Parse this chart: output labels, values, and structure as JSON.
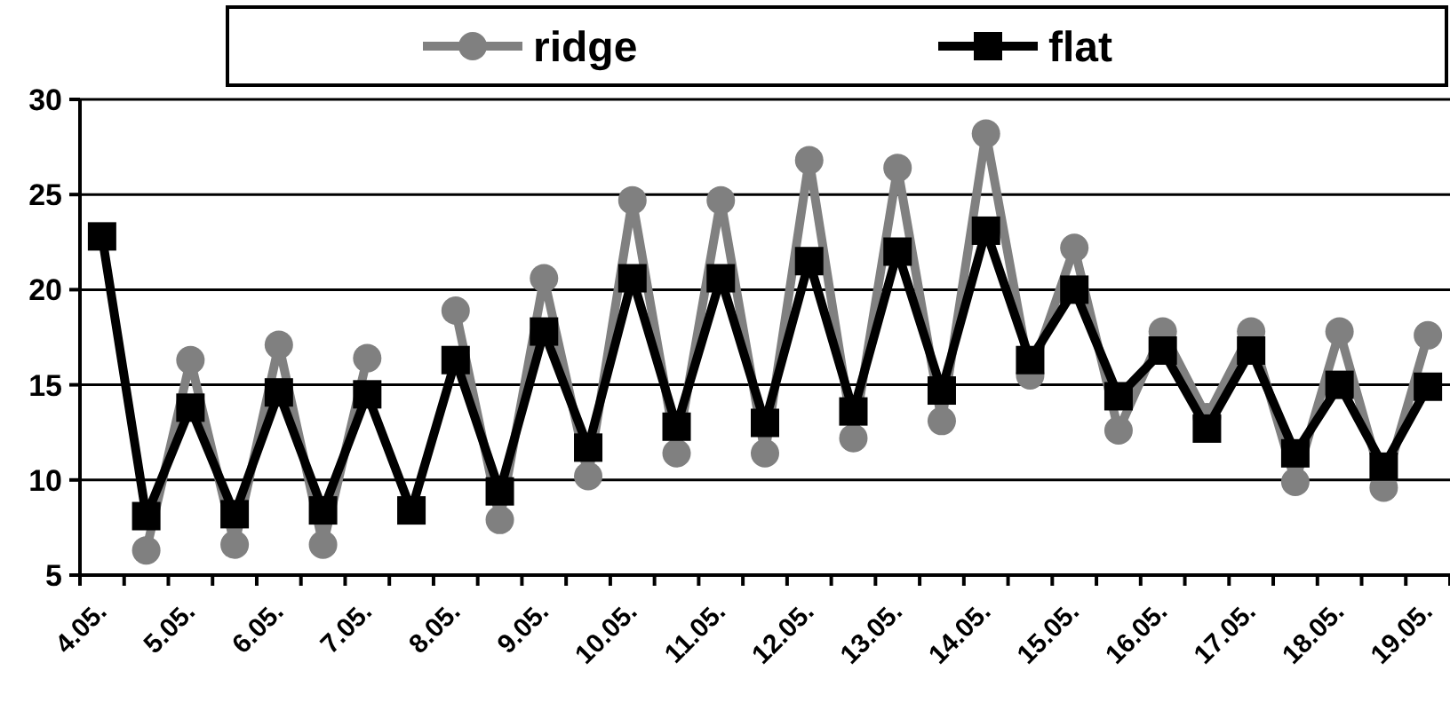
{
  "chart_data": {
    "type": "line",
    "categories": [
      "4.05.",
      null,
      "5.05.",
      null,
      "6.05.",
      null,
      "7.05.",
      null,
      "8.05.",
      null,
      "9.05.",
      null,
      "10.05.",
      null,
      "11.05.",
      null,
      "12.05.",
      null,
      "13.05.",
      null,
      "14.05.",
      null,
      "15.05.",
      null,
      "16.05.",
      null,
      "17.05.",
      null,
      "18.05.",
      null,
      "19.05."
    ],
    "series": [
      {
        "name": "ridge",
        "color": "#808080",
        "marker": "circle",
        "values": [
          null,
          6.3,
          16.3,
          6.6,
          17.1,
          6.6,
          16.4,
          null,
          18.9,
          7.9,
          20.6,
          10.2,
          24.7,
          11.4,
          24.7,
          11.4,
          26.8,
          12.2,
          26.4,
          13.1,
          28.2,
          15.5,
          22.2,
          12.6,
          17.8,
          13.3,
          17.8,
          9.9,
          17.8,
          9.6,
          17.6
        ]
      },
      {
        "name": "flat",
        "color": "#000000",
        "marker": "square",
        "values": [
          22.8,
          8.1,
          13.8,
          8.2,
          14.6,
          8.4,
          14.5,
          8.4,
          16.3,
          9.4,
          17.8,
          11.7,
          20.6,
          12.8,
          20.6,
          13.0,
          21.5,
          13.6,
          22.0,
          14.7,
          23.1,
          16.3,
          20.0,
          14.4,
          16.8,
          12.7,
          16.8,
          11.4,
          15.0,
          10.7,
          14.9
        ]
      }
    ],
    "ylim": [
      5,
      30
    ],
    "yticks": [
      5,
      10,
      15,
      20,
      25,
      30
    ],
    "grid": "y",
    "legend": "top",
    "line_style": "solid"
  }
}
